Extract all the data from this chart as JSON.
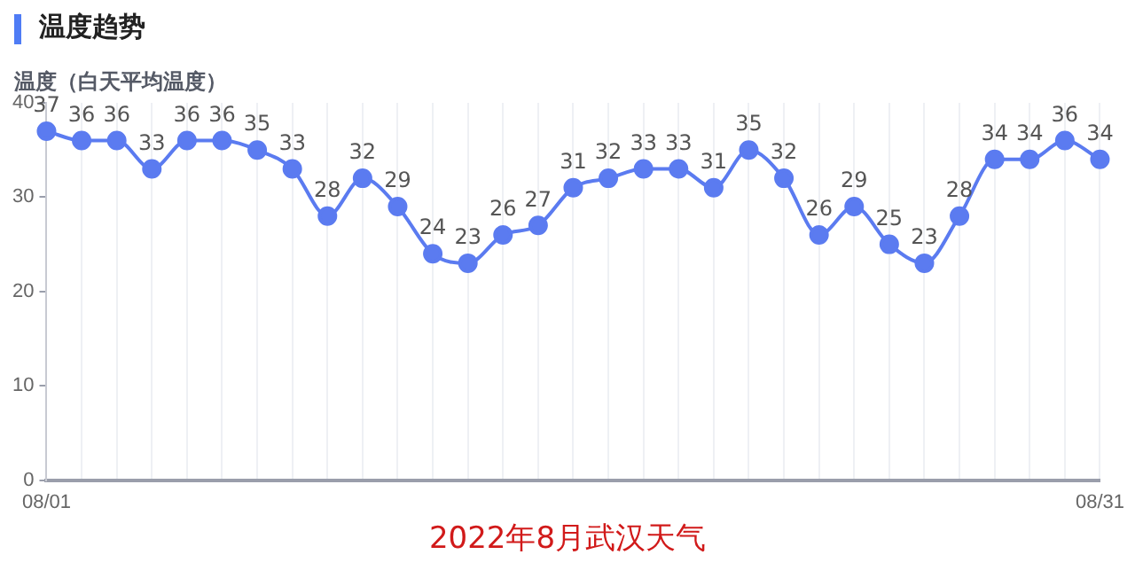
{
  "chart_data": {
    "type": "line",
    "title": "温度趋势",
    "ylabel": "温度（白天平均温度）",
    "categories": [
      "08/01",
      null,
      null,
      null,
      null,
      null,
      null,
      null,
      null,
      null,
      null,
      null,
      null,
      null,
      null,
      null,
      null,
      null,
      null,
      null,
      null,
      null,
      null,
      null,
      null,
      null,
      null,
      null,
      null,
      null,
      "08/31"
    ],
    "series": [
      {
        "color": "#5b7bf0",
        "values": [
          37,
          36,
          36,
          33,
          36,
          36,
          35,
          33,
          28,
          32,
          29,
          24,
          23,
          26,
          27,
          31,
          32,
          33,
          33,
          31,
          35,
          32,
          26,
          29,
          25,
          23,
          28,
          34,
          34,
          36,
          34
        ]
      }
    ],
    "ylim": [
      0,
      40
    ],
    "yticks": [
      0,
      10,
      20,
      30,
      40
    ],
    "grid": "x",
    "legend": false,
    "marker": "circle",
    "data_labels": true,
    "annotations": [
      "2022年8月武汉天气"
    ]
  }
}
